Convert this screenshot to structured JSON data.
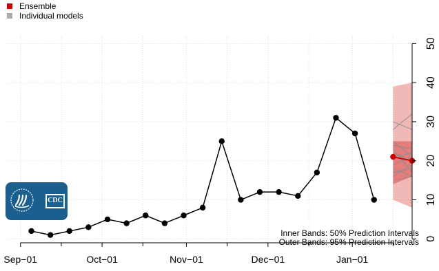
{
  "legend": {
    "ensemble_label": "Ensemble",
    "ensemble_color": "#cc0000",
    "individual_label": "Individual models",
    "individual_color": "#aaaaaa"
  },
  "logo": {
    "name": "CDC logo",
    "text": "CDC",
    "hhs_icon": "hhs-eagle-icon",
    "color": "#1a5f8e"
  },
  "notes": {
    "inner": "Inner Bands: 50% Prediction Intervals",
    "outer": "Outer Bands: 95% Prediction Intervals"
  },
  "chart_data": {
    "type": "line",
    "xlim": [
      "2020-08-27",
      "2021-01-23"
    ],
    "ylim": [
      -1,
      52
    ],
    "x_ticks": [
      "2020-09-01",
      "2020-10-01",
      "2020-11-01",
      "2020-12-01",
      "2021-01-01"
    ],
    "x_tick_labels": [
      "Sep−01",
      "Oct−01",
      "Nov−01",
      "Dec−01",
      "Jan−01"
    ],
    "x_minor_ticks": [
      "2020-09-16",
      "2020-10-16",
      "2020-11-16",
      "2020-12-16",
      "2021-01-16"
    ],
    "y_ticks": [
      0,
      10,
      20,
      30,
      40,
      50
    ],
    "y_tick_labels": [
      "0",
      "10",
      "20",
      "30",
      "40",
      "50"
    ],
    "y_axis_side": "right",
    "grid": true,
    "legend_position": "top-left",
    "observed": {
      "color": "#000000",
      "x": [
        "2020-09-05",
        "2020-09-12",
        "2020-09-19",
        "2020-09-26",
        "2020-10-03",
        "2020-10-10",
        "2020-10-17",
        "2020-10-24",
        "2020-10-31",
        "2020-11-07",
        "2020-11-14",
        "2020-11-21",
        "2020-11-28",
        "2020-12-05",
        "2020-12-12",
        "2020-12-19",
        "2020-12-26",
        "2021-01-02",
        "2021-01-09"
      ],
      "y": [
        2,
        1,
        2,
        3,
        5,
        4,
        6,
        4,
        6,
        8,
        25,
        10,
        12,
        12,
        11,
        17,
        31,
        27,
        10
      ]
    },
    "ensemble": {
      "color": "#cc0000",
      "x": [
        "2021-01-16",
        "2021-01-23"
      ],
      "y": [
        21,
        20
      ]
    },
    "intervals": {
      "x": [
        "2021-01-16",
        "2021-01-23"
      ],
      "inner_50": {
        "lower": [
          14,
          16
        ],
        "upper": [
          25,
          25
        ]
      },
      "outer_95": {
        "lower": [
          10,
          8
        ],
        "upper": [
          39,
          40
        ]
      }
    },
    "individual_models": [
      {
        "y": [
          15,
          16
        ]
      },
      {
        "y": [
          17,
          18
        ]
      },
      {
        "y": [
          19,
          21
        ]
      },
      {
        "y": [
          22,
          20
        ]
      },
      {
        "y": [
          24,
          23
        ]
      },
      {
        "y": [
          18,
          16
        ]
      },
      {
        "y": [
          21,
          22
        ]
      },
      {
        "y": [
          16,
          19
        ]
      },
      {
        "y": [
          23,
          17
        ]
      },
      {
        "y": [
          28,
          32
        ]
      },
      {
        "y": [
          30,
          28
        ]
      },
      {
        "y": [
          25,
          21
        ]
      }
    ]
  }
}
